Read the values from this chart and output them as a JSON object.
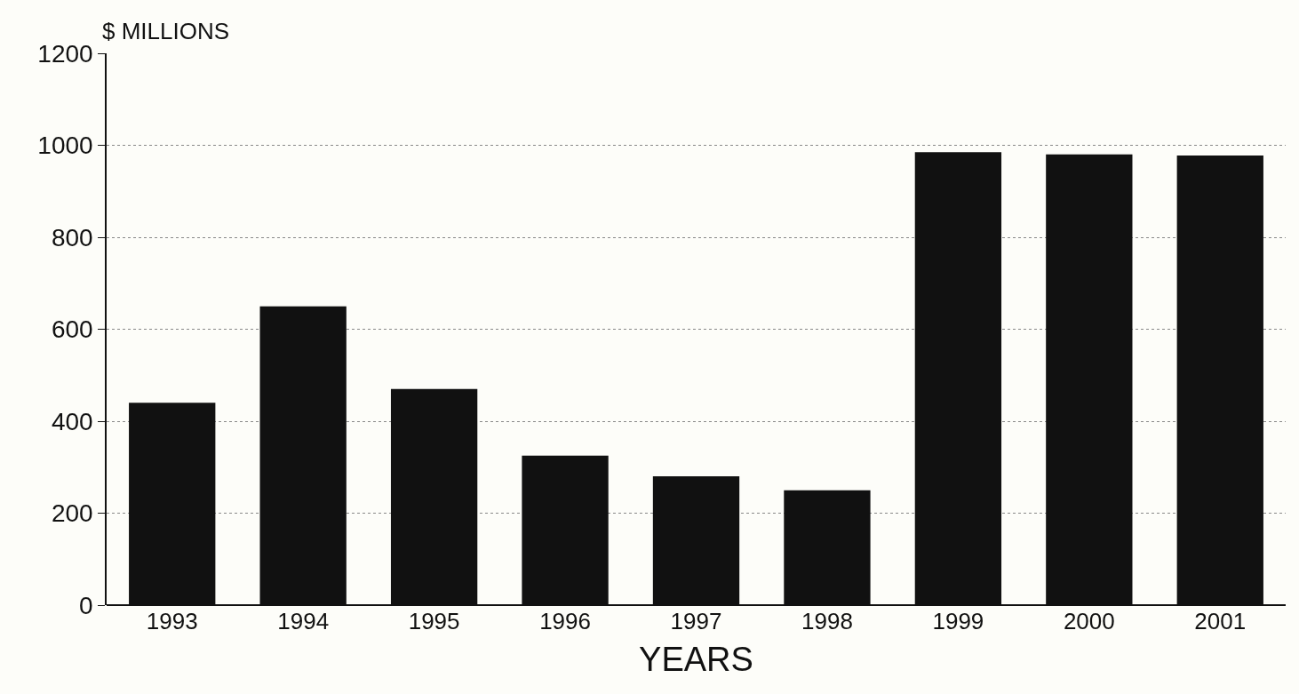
{
  "chart_data": {
    "type": "bar",
    "ylabel": "$ MILLIONS",
    "xlabel": "YEARS",
    "categories": [
      "1993",
      "1994",
      "1995",
      "1996",
      "1997",
      "1998",
      "1999",
      "2000",
      "2001"
    ],
    "values": [
      440,
      650,
      470,
      325,
      280,
      250,
      985,
      980,
      978
    ],
    "color": "#111111",
    "ylim": [
      0,
      1200
    ],
    "yticks": [
      0,
      200,
      400,
      600,
      800,
      1000,
      1200
    ],
    "grid": "y"
  }
}
